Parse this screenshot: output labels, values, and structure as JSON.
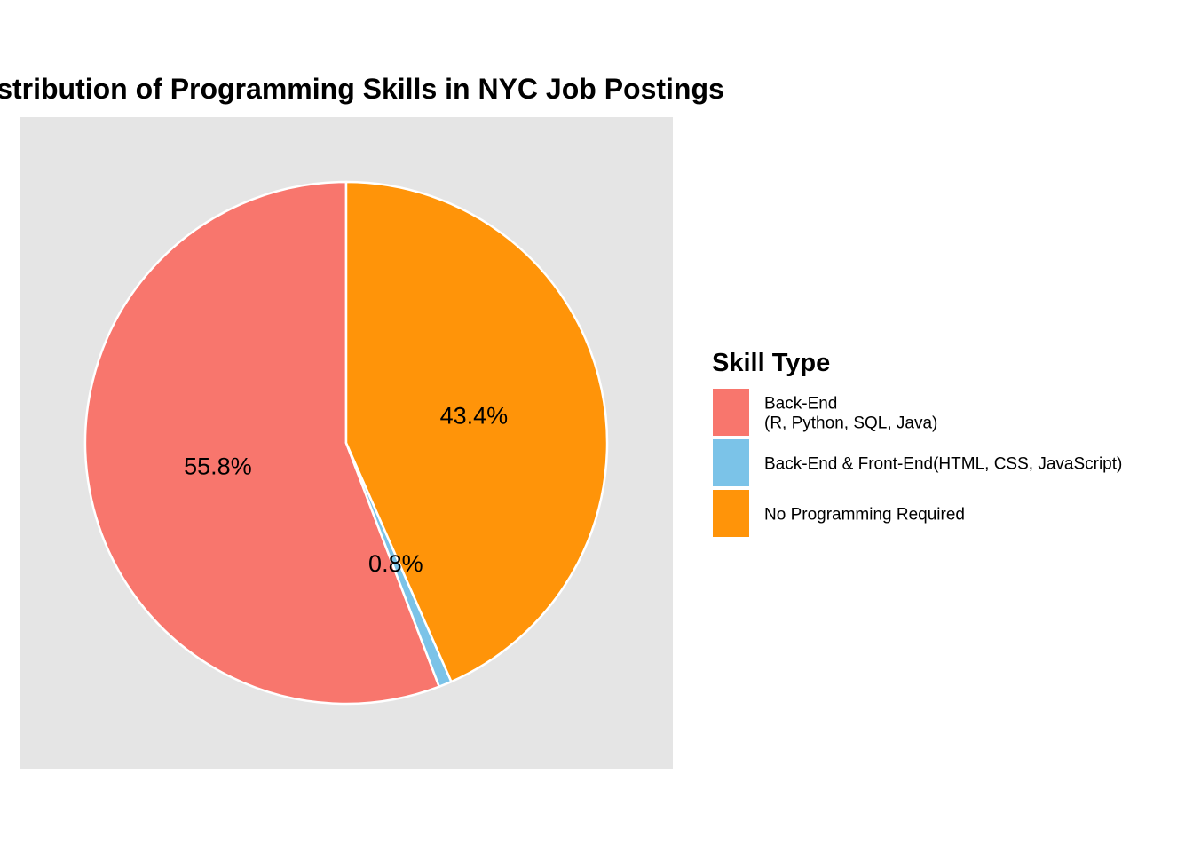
{
  "chart_data": {
    "type": "pie",
    "title": "Distribution of Programming Skills in NYC Job Postings",
    "categories": [
      "Back-End\n(R, Python, SQL, Java)",
      "Back-End & Front-End(HTML, CSS, JavaScript)",
      "No Programming Required"
    ],
    "values": [
      55.8,
      0.8,
      43.4
    ],
    "value_labels": [
      "55.8%",
      "0.8%",
      "43.4%"
    ],
    "colors": [
      "#F8766D",
      "#7BC3E8",
      "#FF9409"
    ],
    "start": "12 o'clock",
    "direction": "counter-clockwise",
    "legend": {
      "title": "Skill Type",
      "placement": "right"
    },
    "panel_background": "#E5E5E5",
    "slice_border_color": "#FFFFFF"
  }
}
